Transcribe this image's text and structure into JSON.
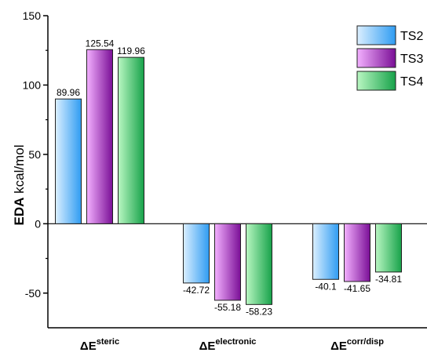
{
  "chart_data": {
    "type": "bar",
    "ylabel_bold": "EDA",
    "ylabel_rest": "kcal/mol",
    "xlabel": "",
    "ylim": [
      -75,
      150
    ],
    "yticks": [
      150,
      100,
      50,
      0,
      -50
    ],
    "categories": [
      {
        "base": "ΔE",
        "sup": "steric"
      },
      {
        "base": "ΔE",
        "sup": "electronic"
      },
      {
        "base": "ΔE",
        "sup": "corr/disp"
      }
    ],
    "series": [
      {
        "name": "TS2",
        "values": [
          89.96,
          -42.72,
          -40.1
        ],
        "labels": [
          "89.96",
          "-42.72",
          "-40.1"
        ],
        "color_light": "#dbefff",
        "color_dark": "#2f9cf2"
      },
      {
        "name": "TS3",
        "values": [
          125.54,
          -55.18,
          -41.65
        ],
        "labels": [
          "125.54",
          "-55.18",
          "-41.65"
        ],
        "color_light": "#f3b0ff",
        "color_dark": "#7a0f96"
      },
      {
        "name": "TS4",
        "values": [
          119.96,
          -58.23,
          -34.81
        ],
        "labels": [
          "119.96",
          "-58.23",
          "-34.81"
        ],
        "color_light": "#b9f7c2",
        "color_dark": "#17a24a"
      }
    ],
    "legend_position": "top-right",
    "grid": false
  }
}
